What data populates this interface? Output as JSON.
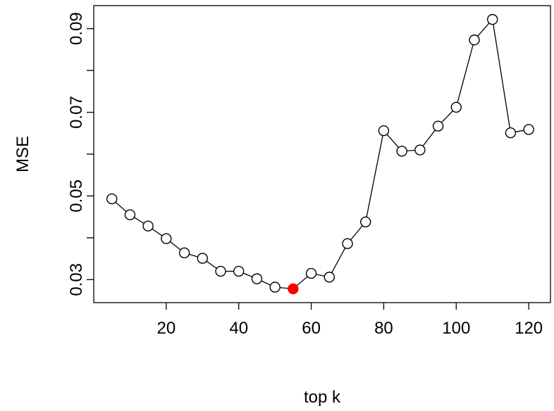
{
  "chart_data": {
    "type": "line",
    "xlabel": "top k",
    "ylabel": "MSE",
    "xlim": [
      0,
      126
    ],
    "ylim": [
      0.0245,
      0.0955
    ],
    "x_ticks": [
      20,
      40,
      60,
      80,
      100,
      120
    ],
    "x_tick_labels": [
      "20",
      "40",
      "60",
      "80",
      "100",
      "120"
    ],
    "y_ticks": [
      0.03,
      0.04,
      0.05,
      0.06,
      0.07,
      0.08,
      0.09
    ],
    "y_tick_labels": [
      "0.03",
      "",
      "0.05",
      "",
      "0.07",
      "",
      "0.09"
    ],
    "grid": false,
    "series": [
      {
        "x": [
          5,
          10,
          15,
          20,
          25,
          30,
          35,
          40,
          45,
          50,
          55,
          60,
          65,
          70,
          75,
          80,
          85,
          90,
          95,
          100,
          105,
          110,
          115,
          120
        ],
        "y": [
          0.0493,
          0.0455,
          0.0428,
          0.0398,
          0.0364,
          0.0351,
          0.032,
          0.032,
          0.0302,
          0.0282,
          0.0278,
          0.0315,
          0.0306,
          0.0386,
          0.0438,
          0.0656,
          0.0607,
          0.061,
          0.0667,
          0.0712,
          0.0873,
          0.0922,
          0.0651,
          0.0659
        ],
        "color": "#000000"
      }
    ],
    "highlight": {
      "x": 55,
      "y": 0.0278,
      "color": "#ff0000"
    }
  }
}
